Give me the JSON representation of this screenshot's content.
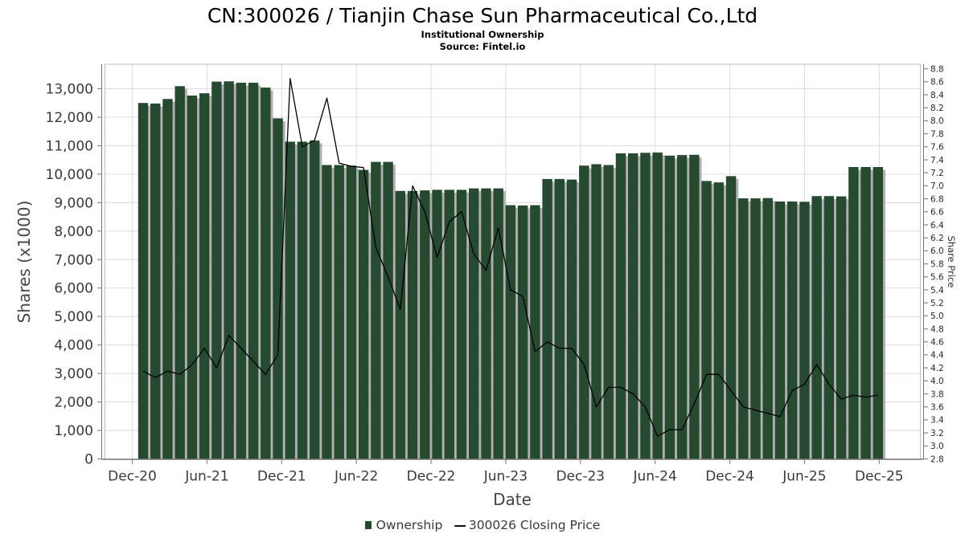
{
  "header": {
    "title": "CN:300026 / Tianjin Chase Sun Pharmaceutical Co.,Ltd",
    "subtitle": "Institutional Ownership",
    "source": "Source: Fintel.io"
  },
  "legend": {
    "ownership_label": "Ownership",
    "line_symbol": "—",
    "price_label": "300026 Closing Price"
  },
  "colors": {
    "bar": "#264a2f",
    "bar_shadow": "#9e9e9e",
    "price_line": "#000000",
    "grid": "#dcdcdc",
    "frame": "#bdbdbd",
    "spine": "#757575",
    "tick": "#8a8a8a"
  },
  "chart_data": {
    "type": "bar+line",
    "title": "CN:300026 / Tianjin Chase Sun Pharmaceutical Co.,Ltd",
    "subtitle": "Institutional Ownership",
    "source": "Source: Fintel.io",
    "grid": true,
    "legend_position": "bottom",
    "categories": [
      "Dec-20",
      "Jan-21",
      "Feb-21",
      "Mar-21",
      "Apr-21",
      "May-21",
      "Jun-21",
      "Jul-21",
      "Aug-21",
      "Sep-21",
      "Oct-21",
      "Nov-21",
      "Dec-21",
      "Jan-22",
      "Feb-22",
      "Mar-22",
      "Apr-22",
      "May-22",
      "Jun-22",
      "Jul-22",
      "Aug-22",
      "Sep-22",
      "Oct-22",
      "Nov-22",
      "Dec-22",
      "Jan-23",
      "Feb-23",
      "Mar-23",
      "Apr-23",
      "May-23",
      "Jun-23",
      "Jul-23",
      "Aug-23",
      "Sep-23",
      "Oct-23",
      "Nov-23",
      "Dec-23",
      "Jan-24",
      "Feb-24",
      "Mar-24",
      "Apr-24",
      "May-24",
      "Jun-24",
      "Jul-24",
      "Aug-24",
      "Sep-24",
      "Oct-24",
      "Nov-24",
      "Dec-24",
      "Jan-25",
      "Feb-25",
      "Mar-25",
      "Apr-25",
      "May-25",
      "Jun-25",
      "Jul-25",
      "Aug-25",
      "Sep-25",
      "Oct-25",
      "Nov-25",
      "Dec-25"
    ],
    "series": [
      {
        "name": "Ownership",
        "type": "bar",
        "axis": "left",
        "units": "shares x1000",
        "values": [
          12500,
          12480,
          12640,
          13090,
          12760,
          12840,
          13250,
          13260,
          13210,
          13210,
          13040,
          11960,
          11140,
          11140,
          11180,
          10320,
          10320,
          10300,
          10150,
          10430,
          10430,
          9410,
          9410,
          9430,
          9450,
          9450,
          9450,
          9500,
          9500,
          9500,
          8910,
          8900,
          8910,
          9830,
          9830,
          9810,
          10300,
          10350,
          10320,
          10730,
          10730,
          10750,
          10760,
          10650,
          10670,
          10680,
          9760,
          9710,
          9930,
          9150,
          9150,
          9160,
          9040,
          9040,
          9030,
          9230,
          9230,
          9220,
          10250,
          10250,
          10250
        ]
      },
      {
        "name": "300026 Closing Price",
        "type": "line",
        "axis": "right",
        "units": "price",
        "values": [
          4.15,
          4.05,
          4.15,
          4.1,
          4.25,
          4.5,
          4.2,
          4.7,
          4.5,
          4.3,
          4.1,
          4.4,
          8.65,
          7.6,
          7.7,
          8.35,
          7.35,
          7.3,
          7.28,
          6.05,
          5.6,
          5.1,
          7.0,
          6.6,
          5.9,
          6.45,
          6.6,
          5.95,
          5.7,
          6.35,
          5.4,
          5.3,
          4.45,
          4.6,
          4.5,
          4.5,
          4.25,
          3.6,
          3.9,
          3.9,
          3.8,
          3.6,
          3.15,
          3.25,
          3.25,
          3.65,
          4.1,
          4.1,
          3.85,
          3.6,
          3.55,
          3.5,
          3.45,
          3.85,
          3.95,
          4.25,
          3.95,
          3.72,
          3.78,
          3.75,
          3.78
        ]
      }
    ],
    "x_axis": {
      "label": "Date",
      "tick_labels": [
        "Dec-20",
        "Jun-21",
        "Dec-21",
        "Jun-22",
        "Dec-22",
        "Jun-23",
        "Dec-23",
        "Jun-24",
        "Dec-24",
        "Jun-25",
        "Dec-25"
      ],
      "tick_month_indices": [
        0,
        6,
        12,
        18,
        24,
        30,
        36,
        42,
        48,
        54,
        60
      ]
    },
    "y_axis_left": {
      "label": "Shares (x1000)",
      "min": 0,
      "max": 13860,
      "grid_step": 1000,
      "tick_labels": [
        "0",
        "1,000",
        "2,000",
        "3,000",
        "4,000",
        "5,000",
        "6,000",
        "7,000",
        "8,000",
        "9,000",
        "10,000",
        "11,000",
        "12,000",
        "13,000"
      ]
    },
    "y_axis_right": {
      "label": "Share Price",
      "min": 2.8,
      "max": 8.87,
      "step": 0.2,
      "tick_labels": [
        "2.8",
        "3.0",
        "3.2",
        "3.4",
        "3.6",
        "3.8",
        "4.0",
        "4.2",
        "4.4",
        "4.6",
        "4.8",
        "5.0",
        "5.2",
        "5.4",
        "5.6",
        "5.8",
        "6.0",
        "6.2",
        "6.4",
        "6.6",
        "6.8",
        "7.0",
        "7.2",
        "7.4",
        "7.6",
        "7.8",
        "8.0",
        "8.2",
        "8.4",
        "8.6",
        "8.8"
      ]
    }
  }
}
